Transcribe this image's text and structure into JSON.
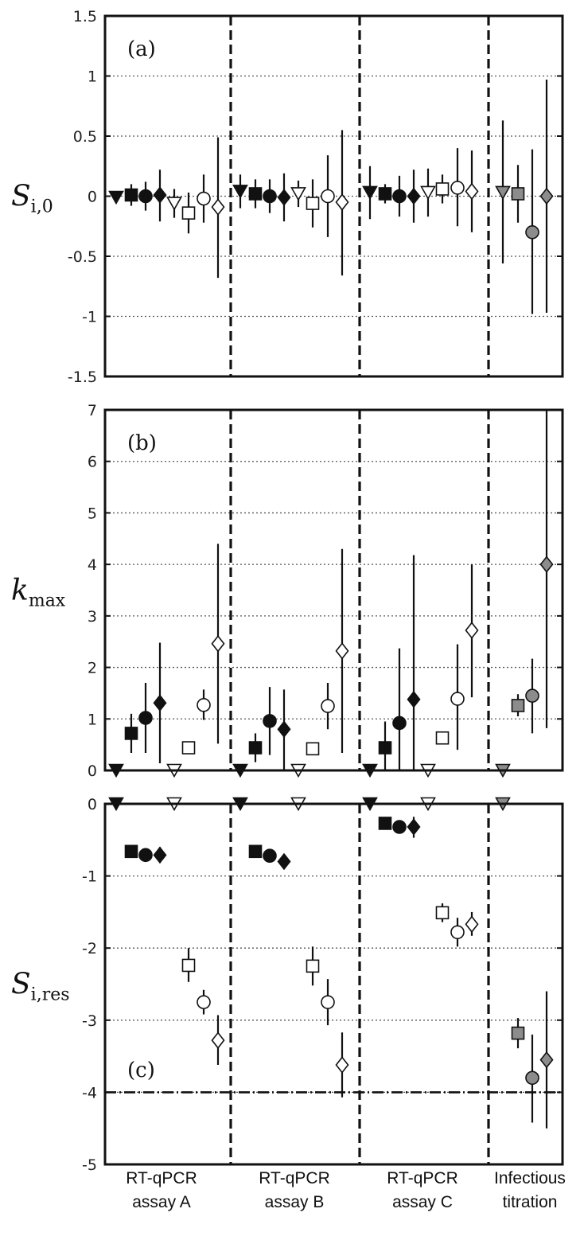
{
  "chart_data": [
    {
      "type": "scatter",
      "panel_label": "(a)",
      "ylabel": "Si,0",
      "ylabel_base": "S",
      "ylabel_sub": "i,0",
      "ylim": [
        -1.5,
        1.5
      ],
      "yticks": [
        1.5,
        1,
        0.5,
        0,
        -0.5,
        -1,
        -1.5
      ],
      "ytick_labels": [
        "1.5",
        "1",
        "0.5",
        "0",
        "-0.5",
        "-1",
        "-1.5"
      ],
      "grid": "dotted-horizontal",
      "points": [
        {
          "group": 0,
          "slot": 0,
          "marker": "tri-down",
          "fill": "black",
          "y": -0.01,
          "lo": -0.05,
          "hi": 0.03
        },
        {
          "group": 0,
          "slot": 1,
          "marker": "square",
          "fill": "black",
          "y": 0.01,
          "lo": -0.08,
          "hi": 0.1
        },
        {
          "group": 0,
          "slot": 2,
          "marker": "circle",
          "fill": "black",
          "y": 0.0,
          "lo": -0.12,
          "hi": 0.12
        },
        {
          "group": 0,
          "slot": 3,
          "marker": "diamond",
          "fill": "black",
          "y": 0.01,
          "lo": -0.21,
          "hi": 0.22
        },
        {
          "group": 0,
          "slot": 4,
          "marker": "tri-down",
          "fill": "white",
          "y": -0.06,
          "lo": -0.18,
          "hi": 0.06
        },
        {
          "group": 0,
          "slot": 5,
          "marker": "square",
          "fill": "white",
          "y": -0.14,
          "lo": -0.31,
          "hi": 0.03
        },
        {
          "group": 0,
          "slot": 6,
          "marker": "circle",
          "fill": "white",
          "y": -0.02,
          "lo": -0.22,
          "hi": 0.18
        },
        {
          "group": 0,
          "slot": 7,
          "marker": "diamond",
          "fill": "white",
          "y": -0.09,
          "lo": -0.68,
          "hi": 0.49
        },
        {
          "group": 1,
          "slot": 0,
          "marker": "tri-down",
          "fill": "black",
          "y": 0.04,
          "lo": -0.1,
          "hi": 0.18
        },
        {
          "group": 1,
          "slot": 1,
          "marker": "square",
          "fill": "black",
          "y": 0.02,
          "lo": -0.1,
          "hi": 0.14
        },
        {
          "group": 1,
          "slot": 2,
          "marker": "circle",
          "fill": "black",
          "y": 0.0,
          "lo": -0.14,
          "hi": 0.14
        },
        {
          "group": 1,
          "slot": 3,
          "marker": "diamond",
          "fill": "black",
          "y": -0.01,
          "lo": -0.21,
          "hi": 0.19
        },
        {
          "group": 1,
          "slot": 4,
          "marker": "tri-down",
          "fill": "white",
          "y": 0.02,
          "lo": -0.09,
          "hi": 0.13
        },
        {
          "group": 1,
          "slot": 5,
          "marker": "square",
          "fill": "white",
          "y": -0.06,
          "lo": -0.26,
          "hi": 0.14
        },
        {
          "group": 1,
          "slot": 6,
          "marker": "circle",
          "fill": "white",
          "y": 0.0,
          "lo": -0.34,
          "hi": 0.34
        },
        {
          "group": 1,
          "slot": 7,
          "marker": "diamond",
          "fill": "white",
          "y": -0.05,
          "lo": -0.66,
          "hi": 0.55
        },
        {
          "group": 2,
          "slot": 0,
          "marker": "tri-down",
          "fill": "black",
          "y": 0.03,
          "lo": -0.19,
          "hi": 0.25
        },
        {
          "group": 2,
          "slot": 1,
          "marker": "square",
          "fill": "black",
          "y": 0.02,
          "lo": -0.06,
          "hi": 0.1
        },
        {
          "group": 2,
          "slot": 2,
          "marker": "circle",
          "fill": "black",
          "y": 0.0,
          "lo": -0.17,
          "hi": 0.17
        },
        {
          "group": 2,
          "slot": 3,
          "marker": "diamond",
          "fill": "black",
          "y": 0.0,
          "lo": -0.22,
          "hi": 0.22
        },
        {
          "group": 2,
          "slot": 4,
          "marker": "tri-down",
          "fill": "white",
          "y": 0.03,
          "lo": -0.17,
          "hi": 0.23
        },
        {
          "group": 2,
          "slot": 5,
          "marker": "square",
          "fill": "white",
          "y": 0.06,
          "lo": -0.06,
          "hi": 0.18
        },
        {
          "group": 2,
          "slot": 6,
          "marker": "circle",
          "fill": "white",
          "y": 0.07,
          "lo": -0.25,
          "hi": 0.4
        },
        {
          "group": 2,
          "slot": 7,
          "marker": "diamond",
          "fill": "white",
          "y": 0.04,
          "lo": -0.3,
          "hi": 0.38
        },
        {
          "group": 3,
          "slot": 0,
          "marker": "tri-down",
          "fill": "gray",
          "y": 0.03,
          "lo": -0.56,
          "hi": 0.63
        },
        {
          "group": 3,
          "slot": 1,
          "marker": "square",
          "fill": "gray",
          "y": 0.02,
          "lo": -0.22,
          "hi": 0.26
        },
        {
          "group": 3,
          "slot": 2,
          "marker": "circle",
          "fill": "gray",
          "y": -0.3,
          "lo": -0.98,
          "hi": 0.39
        },
        {
          "group": 3,
          "slot": 3,
          "marker": "diamond",
          "fill": "gray",
          "y": 0.0,
          "lo": -0.97,
          "hi": 0.97
        }
      ]
    },
    {
      "type": "scatter",
      "panel_label": "(b)",
      "ylabel": "kmax",
      "ylabel_base": "k",
      "ylabel_sub": "max",
      "ylim": [
        0,
        7
      ],
      "yticks": [
        7,
        6,
        5,
        4,
        3,
        2,
        1,
        0
      ],
      "ytick_labels": [
        "7",
        "6",
        "5",
        "4",
        "3",
        "2",
        "1",
        "0"
      ],
      "grid": "dotted-horizontal",
      "points": [
        {
          "group": 0,
          "slot": 0,
          "marker": "tri-down",
          "fill": "black",
          "y": 0.0,
          "lo": null,
          "hi": null
        },
        {
          "group": 0,
          "slot": 1,
          "marker": "square",
          "fill": "black",
          "y": 0.72,
          "lo": 0.34,
          "hi": 1.1
        },
        {
          "group": 0,
          "slot": 2,
          "marker": "circle",
          "fill": "black",
          "y": 1.02,
          "lo": 0.34,
          "hi": 1.7
        },
        {
          "group": 0,
          "slot": 3,
          "marker": "diamond",
          "fill": "black",
          "y": 1.31,
          "lo": 0.14,
          "hi": 2.48
        },
        {
          "group": 0,
          "slot": 4,
          "marker": "tri-down",
          "fill": "white",
          "y": 0.0,
          "lo": null,
          "hi": null
        },
        {
          "group": 0,
          "slot": 5,
          "marker": "square",
          "fill": "white",
          "y": 0.44,
          "lo": 0.36,
          "hi": 0.52
        },
        {
          "group": 0,
          "slot": 6,
          "marker": "circle",
          "fill": "white",
          "y": 1.27,
          "lo": 0.98,
          "hi": 1.57
        },
        {
          "group": 0,
          "slot": 7,
          "marker": "diamond",
          "fill": "white",
          "y": 2.46,
          "lo": 0.52,
          "hi": 4.4
        },
        {
          "group": 1,
          "slot": 0,
          "marker": "tri-down",
          "fill": "black",
          "y": 0.0,
          "lo": null,
          "hi": null
        },
        {
          "group": 1,
          "slot": 1,
          "marker": "square",
          "fill": "black",
          "y": 0.44,
          "lo": 0.16,
          "hi": 0.72
        },
        {
          "group": 1,
          "slot": 2,
          "marker": "circle",
          "fill": "black",
          "y": 0.96,
          "lo": 0.3,
          "hi": 1.62
        },
        {
          "group": 1,
          "slot": 3,
          "marker": "diamond",
          "fill": "black",
          "y": 0.8,
          "lo": 0.0,
          "hi": 1.57
        },
        {
          "group": 1,
          "slot": 4,
          "marker": "tri-down",
          "fill": "white",
          "y": 0.0,
          "lo": null,
          "hi": null
        },
        {
          "group": 1,
          "slot": 5,
          "marker": "square",
          "fill": "white",
          "y": 0.42,
          "lo": 0.35,
          "hi": 0.5
        },
        {
          "group": 1,
          "slot": 6,
          "marker": "circle",
          "fill": "white",
          "y": 1.25,
          "lo": 0.8,
          "hi": 1.7
        },
        {
          "group": 1,
          "slot": 7,
          "marker": "diamond",
          "fill": "white",
          "y": 2.32,
          "lo": 0.34,
          "hi": 4.3
        },
        {
          "group": 2,
          "slot": 0,
          "marker": "tri-down",
          "fill": "black",
          "y": 0.0,
          "lo": null,
          "hi": null
        },
        {
          "group": 2,
          "slot": 1,
          "marker": "square",
          "fill": "black",
          "y": 0.44,
          "lo": 0.0,
          "hi": 0.95
        },
        {
          "group": 2,
          "slot": 2,
          "marker": "circle",
          "fill": "black",
          "y": 0.92,
          "lo": 0.0,
          "hi": 2.37
        },
        {
          "group": 2,
          "slot": 3,
          "marker": "diamond",
          "fill": "black",
          "y": 1.38,
          "lo": 0.0,
          "hi": 4.18
        },
        {
          "group": 2,
          "slot": 4,
          "marker": "tri-down",
          "fill": "white",
          "y": 0.0,
          "lo": null,
          "hi": null
        },
        {
          "group": 2,
          "slot": 5,
          "marker": "square",
          "fill": "white",
          "y": 0.63,
          "lo": 0.52,
          "hi": 0.75
        },
        {
          "group": 2,
          "slot": 6,
          "marker": "circle",
          "fill": "white",
          "y": 1.39,
          "lo": 0.4,
          "hi": 2.45
        },
        {
          "group": 2,
          "slot": 7,
          "marker": "diamond",
          "fill": "white",
          "y": 2.72,
          "lo": 1.42,
          "hi": 4.0
        },
        {
          "group": 3,
          "slot": 0,
          "marker": "tri-down",
          "fill": "gray",
          "y": 0.0,
          "lo": null,
          "hi": null
        },
        {
          "group": 3,
          "slot": 1,
          "marker": "square",
          "fill": "gray",
          "y": 1.26,
          "lo": 1.05,
          "hi": 1.48
        },
        {
          "group": 3,
          "slot": 2,
          "marker": "circle",
          "fill": "gray",
          "y": 1.45,
          "lo": 0.72,
          "hi": 2.17
        },
        {
          "group": 3,
          "slot": 3,
          "marker": "diamond",
          "fill": "gray",
          "y": 4.0,
          "lo": 0.82,
          "hi": 7.0
        }
      ]
    },
    {
      "type": "scatter",
      "panel_label": "(c)",
      "ylabel": "Si,res",
      "ylabel_base": "S",
      "ylabel_sub": "i,res",
      "ylim": [
        -5,
        0
      ],
      "yticks": [
        0,
        -1,
        -2,
        -3,
        -4,
        -5
      ],
      "ytick_labels": [
        "0",
        "-1",
        "-2",
        "-3",
        "-4",
        "-5"
      ],
      "grid": "dotted-horizontal",
      "reference_line": -4,
      "points": [
        {
          "group": 0,
          "slot": 0,
          "marker": "tri-down",
          "fill": "black",
          "y": 0.0,
          "lo": null,
          "hi": null
        },
        {
          "group": 0,
          "slot": 1,
          "marker": "square",
          "fill": "black",
          "y": -0.66,
          "lo": -0.72,
          "hi": -0.6
        },
        {
          "group": 0,
          "slot": 2,
          "marker": "circle",
          "fill": "black",
          "y": -0.71,
          "lo": -0.79,
          "hi": -0.63
        },
        {
          "group": 0,
          "slot": 3,
          "marker": "diamond",
          "fill": "black",
          "y": -0.71,
          "lo": -0.82,
          "hi": -0.6
        },
        {
          "group": 0,
          "slot": 4,
          "marker": "tri-down",
          "fill": "white",
          "y": 0.0,
          "lo": null,
          "hi": null
        },
        {
          "group": 0,
          "slot": 5,
          "marker": "square",
          "fill": "white",
          "y": -2.24,
          "lo": -2.47,
          "hi": -2.0
        },
        {
          "group": 0,
          "slot": 6,
          "marker": "circle",
          "fill": "white",
          "y": -2.75,
          "lo": -2.92,
          "hi": -2.58
        },
        {
          "group": 0,
          "slot": 7,
          "marker": "diamond",
          "fill": "white",
          "y": -3.28,
          "lo": -3.62,
          "hi": -2.93
        },
        {
          "group": 1,
          "slot": 0,
          "marker": "tri-down",
          "fill": "black",
          "y": 0.0,
          "lo": null,
          "hi": null
        },
        {
          "group": 1,
          "slot": 1,
          "marker": "square",
          "fill": "black",
          "y": -0.66,
          "lo": -0.74,
          "hi": -0.57
        },
        {
          "group": 1,
          "slot": 2,
          "marker": "circle",
          "fill": "black",
          "y": -0.72,
          "lo": -0.8,
          "hi": -0.64
        },
        {
          "group": 1,
          "slot": 3,
          "marker": "diamond",
          "fill": "black",
          "y": -0.8,
          "lo": -0.88,
          "hi": -0.7
        },
        {
          "group": 1,
          "slot": 4,
          "marker": "tri-down",
          "fill": "white",
          "y": 0.0,
          "lo": null,
          "hi": null
        },
        {
          "group": 1,
          "slot": 5,
          "marker": "square",
          "fill": "white",
          "y": -2.25,
          "lo": -2.52,
          "hi": -1.98
        },
        {
          "group": 1,
          "slot": 6,
          "marker": "circle",
          "fill": "white",
          "y": -2.75,
          "lo": -3.07,
          "hi": -2.43
        },
        {
          "group": 1,
          "slot": 7,
          "marker": "diamond",
          "fill": "white",
          "y": -3.62,
          "lo": -4.07,
          "hi": -3.17
        },
        {
          "group": 2,
          "slot": 0,
          "marker": "tri-down",
          "fill": "black",
          "y": 0.0,
          "lo": null,
          "hi": null
        },
        {
          "group": 2,
          "slot": 1,
          "marker": "square",
          "fill": "black",
          "y": -0.27,
          "lo": -0.32,
          "hi": -0.22
        },
        {
          "group": 2,
          "slot": 2,
          "marker": "circle",
          "fill": "black",
          "y": -0.32,
          "lo": -0.4,
          "hi": -0.24
        },
        {
          "group": 2,
          "slot": 3,
          "marker": "diamond",
          "fill": "black",
          "y": -0.32,
          "lo": -0.47,
          "hi": -0.18
        },
        {
          "group": 2,
          "slot": 4,
          "marker": "tri-down",
          "fill": "white",
          "y": 0.0,
          "lo": null,
          "hi": null
        },
        {
          "group": 2,
          "slot": 5,
          "marker": "square",
          "fill": "white",
          "y": -1.51,
          "lo": -1.64,
          "hi": -1.38
        },
        {
          "group": 2,
          "slot": 6,
          "marker": "circle",
          "fill": "white",
          "y": -1.78,
          "lo": -1.98,
          "hi": -1.58
        },
        {
          "group": 2,
          "slot": 7,
          "marker": "diamond",
          "fill": "white",
          "y": -1.67,
          "lo": -1.83,
          "hi": -1.5
        },
        {
          "group": 3,
          "slot": 0,
          "marker": "tri-down",
          "fill": "gray",
          "y": 0.0,
          "lo": null,
          "hi": null
        },
        {
          "group": 3,
          "slot": 1,
          "marker": "square",
          "fill": "gray",
          "y": -3.18,
          "lo": -3.39,
          "hi": -2.97
        },
        {
          "group": 3,
          "slot": 2,
          "marker": "circle",
          "fill": "gray",
          "y": -3.8,
          "lo": -4.42,
          "hi": -3.2
        },
        {
          "group": 3,
          "slot": 3,
          "marker": "diamond",
          "fill": "gray",
          "y": -3.55,
          "lo": -4.5,
          "hi": -2.6
        }
      ]
    }
  ],
  "groups": [
    {
      "line1": "RT-qPCR",
      "line2": "assay A"
    },
    {
      "line1": "RT-qPCR",
      "line2": "assay B"
    },
    {
      "line1": "RT-qPCR",
      "line2": "assay C"
    },
    {
      "line1": "Infectious",
      "line2": "titration"
    }
  ],
  "colors": {
    "black": "#111111",
    "white": "#ffffff",
    "gray": "#8c8c8c",
    "axis": "#111111",
    "grid": "#555555"
  }
}
